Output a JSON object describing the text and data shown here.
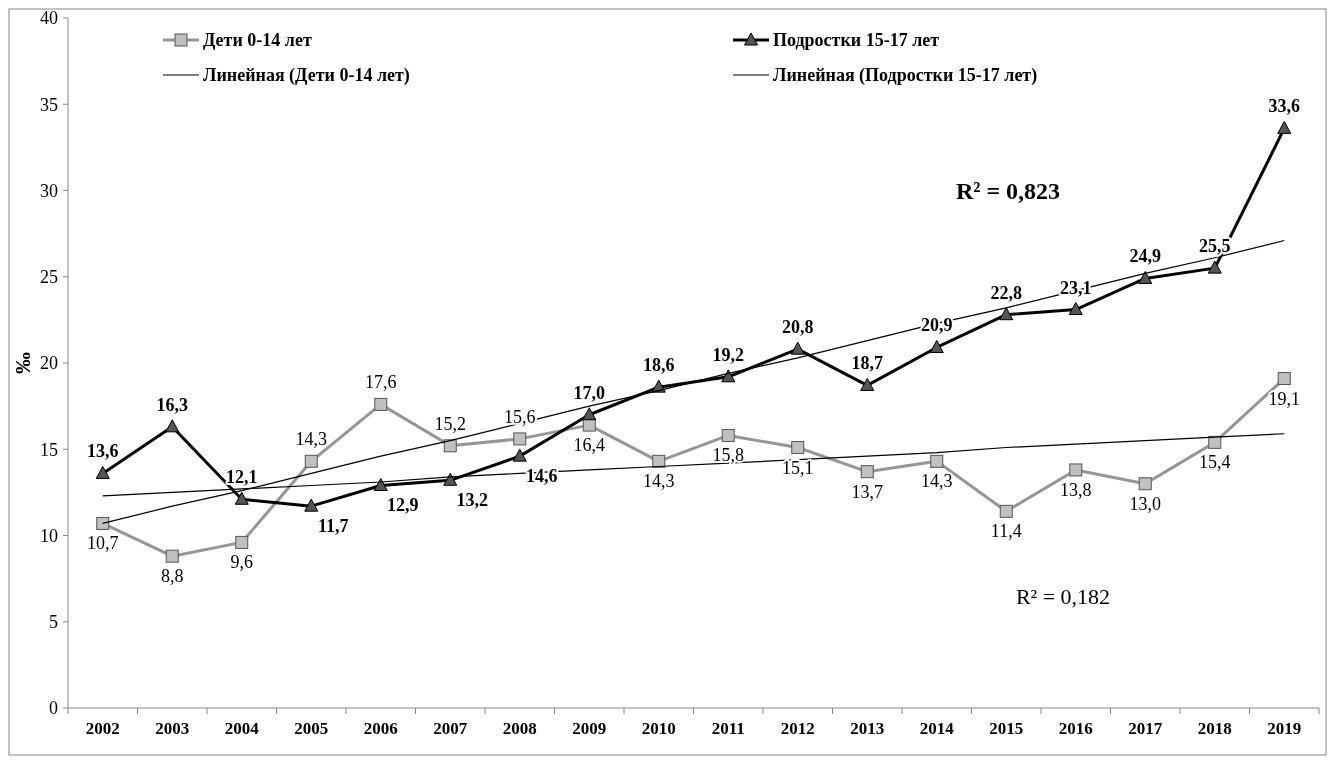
{
  "chart_data": {
    "type": "line",
    "ylabel": "‰",
    "categories": [
      "2002",
      "2003",
      "2004",
      "2005",
      "2006",
      "2007",
      "2008",
      "2009",
      "2010",
      "2011",
      "2012",
      "2013",
      "2014",
      "2015",
      "2016",
      "2017",
      "2018",
      "2019"
    ],
    "ylim": [
      0,
      40
    ],
    "yticks": [
      0,
      5,
      10,
      15,
      20,
      25,
      30,
      35,
      40
    ],
    "grid": false,
    "legend": "top",
    "series": [
      {
        "name": "Дети 0-14 лет",
        "color": "#969696",
        "marker": "square",
        "values": [
          10.7,
          8.8,
          9.6,
          14.3,
          17.6,
          15.2,
          15.6,
          16.4,
          14.3,
          15.8,
          15.1,
          13.7,
          14.3,
          11.4,
          13.8,
          13.0,
          15.4,
          19.1
        ],
        "value_labels": [
          "10,7",
          "8,8",
          "9,6",
          "14,3",
          "17,6",
          "15,2",
          "15,6",
          "16,4",
          "14,3",
          "15,8",
          "15,1",
          "13,7",
          "14,3",
          "11,4",
          "13,8",
          "13,0",
          "15,4",
          "19,1"
        ]
      },
      {
        "name": "Подростки 15-17 лет",
        "color": "#000000",
        "marker": "triangle",
        "values": [
          13.6,
          16.3,
          12.1,
          11.7,
          12.9,
          13.2,
          14.6,
          17.0,
          18.6,
          19.2,
          20.8,
          18.7,
          20.9,
          22.8,
          23.1,
          24.9,
          25.5,
          33.6
        ],
        "value_labels": [
          "13,6",
          "16,3",
          "12,1",
          "11,7",
          "12,9",
          "13,2",
          "14,6",
          "17,0",
          "18,6",
          "19,2",
          "20,8",
          "18,7",
          "20,9",
          "22,8",
          "23,1",
          "24,9",
          "25,5",
          "33,6"
        ]
      },
      {
        "name": "Линейная (Дети 0-14 лет)",
        "type": "line",
        "color": "#000000",
        "marker": "none",
        "values": [
          12.3,
          12.5,
          12.7,
          12.9,
          13.1,
          13.4,
          13.6,
          13.8,
          14.0,
          14.2,
          14.4,
          14.6,
          14.8,
          15.1,
          15.3,
          15.5,
          15.7,
          15.9
        ]
      },
      {
        "name": "Линейная (Подростки 15-17 лет)",
        "type": "line",
        "color": "#000000",
        "marker": "none",
        "values": [
          10.7,
          11.7,
          12.6,
          13.6,
          14.6,
          15.5,
          16.5,
          17.5,
          18.4,
          19.4,
          20.3,
          21.3,
          22.3,
          23.2,
          24.2,
          25.2,
          26.1,
          27.1
        ]
      }
    ],
    "annotations": [
      "R² = 0,823",
      "R² = 0,182"
    ]
  }
}
